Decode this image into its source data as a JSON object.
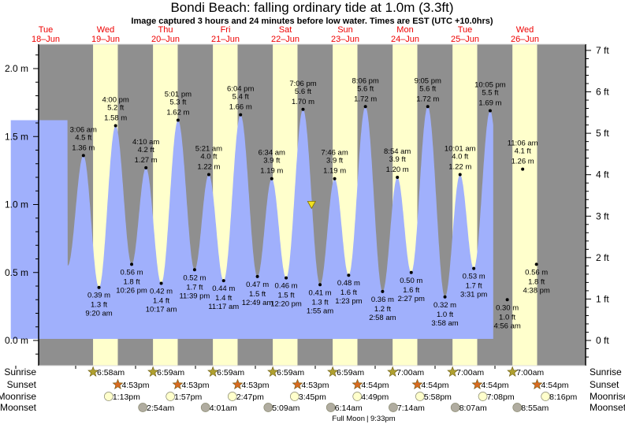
{
  "title": "Bondi Beach: falling  ordinary tide at 1.0m (3.3ft)",
  "subtitle": "Image captured 3 hours and 24 minutes before low water. Times are EST (UTC +10.0hrs)",
  "colors": {
    "night": "#8f8f8f",
    "day": "#ffffcc",
    "water": "#a0b0fc",
    "day_label": "#ee0000",
    "sunrise": "#b0a030",
    "sunset": "#d86a20",
    "moonrise": "#ffffcc",
    "moonset": "#b0aca0",
    "marker": "#f0e020"
  },
  "chart_data": {
    "type": "area",
    "title": "Bondi Beach: falling  ordinary tide at 1.0m (3.3ft)",
    "ylim_m": [
      -0.16,
      2.2
    ],
    "yticks_left": [
      "0.0 m",
      "0.5 m",
      "1.0 m",
      "1.5 m",
      "2.0 m"
    ],
    "yticks_left_values": [
      0,
      0.5,
      1.0,
      1.5,
      2.0
    ],
    "yticks_right": [
      "0 ft",
      "1 ft",
      "2 ft",
      "3 ft",
      "4 ft",
      "5 ft",
      "6 ft",
      "7 ft"
    ],
    "yticks_right_values": [
      0,
      1,
      2,
      3,
      4,
      5,
      6,
      7
    ],
    "days": [
      {
        "name": "Tue",
        "date": "18–Jun"
      },
      {
        "name": "Wed",
        "date": "19–Jun"
      },
      {
        "name": "Thu",
        "date": "20–Jun"
      },
      {
        "name": "Fri",
        "date": "21–Jun"
      },
      {
        "name": "Sat",
        "date": "22–Jun"
      },
      {
        "name": "Sun",
        "date": "23–Jun"
      },
      {
        "name": "Mon",
        "date": "24–Jun"
      },
      {
        "name": "Tue",
        "date": "25–Jun"
      },
      {
        "name": "Wed",
        "date": "26–Jun"
      }
    ],
    "curve_start": {
      "day": 0,
      "hour": -2.0,
      "m": 0.6
    },
    "curve_end": {
      "day": 7,
      "hour": 23.3,
      "m": 1.54
    },
    "tides": [
      {
        "day": 1,
        "type": "high",
        "time": "3:06 am",
        "ft": "4.5 ft",
        "m": 1.36,
        "m_label": "1.36 m"
      },
      {
        "day": 1,
        "type": "low",
        "time": "9:20 am",
        "ft": "1.3 ft",
        "m": 0.39,
        "m_label": "0.39 m"
      },
      {
        "day": 1,
        "type": "high",
        "time": "4:00 pm",
        "ft": "5.2 ft",
        "m": 1.58,
        "m_label": "1.58 m"
      },
      {
        "day": 1,
        "type": "low",
        "time": "10:26 pm",
        "ft": "1.8 ft",
        "m": 0.56,
        "m_label": "0.56 m"
      },
      {
        "day": 2,
        "type": "high",
        "time": "4:10 am",
        "ft": "4.2 ft",
        "m": 1.27,
        "m_label": "1.27 m"
      },
      {
        "day": 2,
        "type": "low",
        "time": "10:17 am",
        "ft": "1.4 ft",
        "m": 0.42,
        "m_label": "0.42 m"
      },
      {
        "day": 2,
        "type": "high",
        "time": "5:01 pm",
        "ft": "5.3 ft",
        "m": 1.62,
        "m_label": "1.62 m"
      },
      {
        "day": 2,
        "type": "low",
        "time": "11:39 pm",
        "ft": "1.7 ft",
        "m": 0.52,
        "m_label": "0.52 m"
      },
      {
        "day": 3,
        "type": "high",
        "time": "5:21 am",
        "ft": "4.0 ft",
        "m": 1.22,
        "m_label": "1.22 m"
      },
      {
        "day": 3,
        "type": "low",
        "time": "11:17 am",
        "ft": "1.4 ft",
        "m": 0.44,
        "m_label": "0.44 m"
      },
      {
        "day": 3,
        "type": "high",
        "time": "6:04 pm",
        "ft": "5.4 ft",
        "m": 1.66,
        "m_label": "1.66 m"
      },
      {
        "day": 4,
        "type": "low",
        "time": "12:49 am",
        "ft": "1.5 ft",
        "m": 0.47,
        "m_label": "0.47 m"
      },
      {
        "day": 4,
        "type": "high",
        "time": "6:34 am",
        "ft": "3.9 ft",
        "m": 1.19,
        "m_label": "1.19 m"
      },
      {
        "day": 4,
        "type": "low",
        "time": "12:20 pm",
        "ft": "1.5 ft",
        "m": 0.46,
        "m_label": "0.46 m"
      },
      {
        "day": 4,
        "type": "high",
        "time": "7:06 pm",
        "ft": "5.6 ft",
        "m": 1.7,
        "m_label": "1.70 m"
      },
      {
        "day": 5,
        "type": "low",
        "time": "1:55 am",
        "ft": "1.3 ft",
        "m": 0.41,
        "m_label": "0.41 m"
      },
      {
        "day": 5,
        "type": "high",
        "time": "7:46 am",
        "ft": "3.9 ft",
        "m": 1.19,
        "m_label": "1.19 m"
      },
      {
        "day": 5,
        "type": "low",
        "time": "1:23 pm",
        "ft": "1.6 ft",
        "m": 0.48,
        "m_label": "0.48 m"
      },
      {
        "day": 5,
        "type": "high",
        "time": "8:06 pm",
        "ft": "5.6 ft",
        "m": 1.72,
        "m_label": "1.72 m"
      },
      {
        "day": 6,
        "type": "low",
        "time": "2:58 am",
        "ft": "1.2 ft",
        "m": 0.36,
        "m_label": "0.36 m"
      },
      {
        "day": 6,
        "type": "high",
        "time": "8:54 am",
        "ft": "3.9 ft",
        "m": 1.2,
        "m_label": "1.20 m"
      },
      {
        "day": 6,
        "type": "low",
        "time": "2:27 pm",
        "ft": "1.6 ft",
        "m": 0.5,
        "m_label": "0.50 m"
      },
      {
        "day": 6,
        "type": "high",
        "time": "9:05 pm",
        "ft": "5.6 ft",
        "m": 1.72,
        "m_label": "1.72 m"
      },
      {
        "day": 7,
        "type": "low",
        "time": "3:58 am",
        "ft": "1.0 ft",
        "m": 0.32,
        "m_label": "0.32 m"
      },
      {
        "day": 7,
        "type": "high",
        "time": "10:01 am",
        "ft": "4.0 ft",
        "m": 1.22,
        "m_label": "1.22 m"
      },
      {
        "day": 7,
        "type": "low",
        "time": "3:31 pm",
        "ft": "1.7 ft",
        "m": 0.53,
        "m_label": "0.53 m"
      },
      {
        "day": 7,
        "type": "high",
        "time": "10:05 pm",
        "ft": "5.5 ft",
        "m": 1.69,
        "m_label": "1.69 m"
      },
      {
        "day": 8,
        "type": "low",
        "time": "4:56 am",
        "ft": "1.0 ft",
        "m": 0.3,
        "m_label": "0.30 m"
      },
      {
        "day": 8,
        "type": "high",
        "time": "11:06 am",
        "ft": "4.1 ft",
        "m": 1.26,
        "m_label": "1.26 m"
      },
      {
        "day": 8,
        "type": "low",
        "time": "4:38 pm",
        "ft": "1.8 ft",
        "m": 0.56,
        "m_label": "0.56 m"
      }
    ],
    "current": {
      "day": 4,
      "time": "10:31 pm",
      "m": 1.0
    },
    "rows": {
      "labels": {
        "sunrise": "Sunrise",
        "sunset": "Sunset",
        "moonrise": "Moonrise",
        "moonset": "Moonset"
      },
      "sunrise": [
        {
          "day": 1,
          "time": "6:58am"
        },
        {
          "day": 2,
          "time": "6:59am"
        },
        {
          "day": 3,
          "time": "6:59am"
        },
        {
          "day": 4,
          "time": "6:59am"
        },
        {
          "day": 5,
          "time": "6:59am"
        },
        {
          "day": 6,
          "time": "7:00am"
        },
        {
          "day": 7,
          "time": "7:00am"
        },
        {
          "day": 8,
          "time": "7:00am"
        }
      ],
      "sunset": [
        {
          "day": 1,
          "time": "4:53pm"
        },
        {
          "day": 2,
          "time": "4:53pm"
        },
        {
          "day": 3,
          "time": "4:53pm"
        },
        {
          "day": 4,
          "time": "4:53pm"
        },
        {
          "day": 5,
          "time": "4:54pm"
        },
        {
          "day": 6,
          "time": "4:54pm"
        },
        {
          "day": 7,
          "time": "4:54pm"
        },
        {
          "day": 8,
          "time": "4:54pm"
        }
      ],
      "moonrise": [
        {
          "day": 1,
          "time": "1:13pm"
        },
        {
          "day": 2,
          "time": "1:57pm"
        },
        {
          "day": 3,
          "time": "2:47pm"
        },
        {
          "day": 4,
          "time": "3:45pm"
        },
        {
          "day": 5,
          "time": "4:49pm"
        },
        {
          "day": 6,
          "time": "5:58pm"
        },
        {
          "day": 7,
          "time": "7:08pm"
        },
        {
          "day": 8,
          "time": "8:16pm"
        }
      ],
      "moonset": [
        {
          "day": 2,
          "time": "2:54am"
        },
        {
          "day": 3,
          "time": "4:01am"
        },
        {
          "day": 4,
          "time": "5:09am"
        },
        {
          "day": 5,
          "time": "6:14am"
        },
        {
          "day": 6,
          "time": "7:14am"
        },
        {
          "day": 7,
          "time": "8:07am"
        },
        {
          "day": 8,
          "time": "8:55am"
        }
      ]
    },
    "moon_phase": {
      "label": "Full Moon",
      "time": "9:33pm",
      "day": 5
    }
  }
}
